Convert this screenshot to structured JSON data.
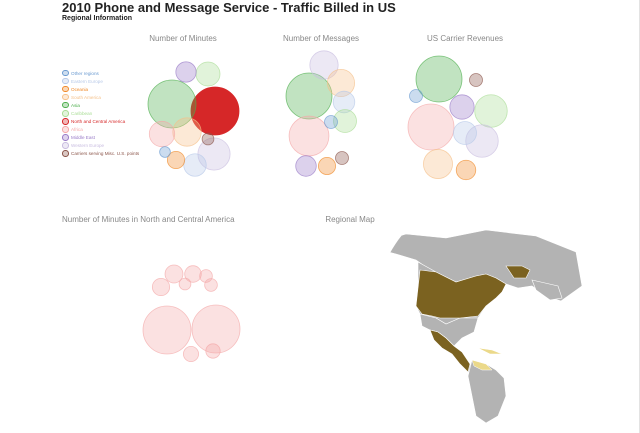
{
  "page": {
    "title": "2010 Phone and Message Service - Traffic Billed in US",
    "subtitle": "Regional Information"
  },
  "colors": {
    "Other regions": "#6a9ad0",
    "Eastern Europe": "#b7c9e8",
    "Oceania": "#f08a2a",
    "South America": "#f5c18a",
    "Asia": "#4cae4c",
    "Caribbean": "#a9dd95",
    "North and Central America": "#d62728",
    "Africa": "#f4a8a8",
    "Middle East": "#9a7cc8",
    "Western Europe": "#c9bde0",
    "Carriers serving Misc. U.S. points": "#8c564b",
    "map_highlight": "#7b6220",
    "map_light": "#ebd98a",
    "map_land": "#b3b3b3"
  },
  "legend": [
    "Other regions",
    "Eastern Europe",
    "Oceania",
    "South America",
    "Asia",
    "Caribbean",
    "North and Central America",
    "Africa",
    "Middle East",
    "Western Europe",
    "Carriers serving Misc. U.S. points"
  ],
  "chart_data": [
    {
      "type": "bubble",
      "title": "Number of Minutes",
      "values": [
        {
          "region": "North and Central America",
          "value": 100,
          "highlight": true
        },
        {
          "region": "Asia",
          "value": 100
        },
        {
          "region": "South America",
          "value": 35
        },
        {
          "region": "Western Europe",
          "value": 45
        },
        {
          "region": "Caribbean",
          "value": 25
        },
        {
          "region": "Middle East",
          "value": 18
        },
        {
          "region": "Africa",
          "value": 28
        },
        {
          "region": "Eastern Europe",
          "value": 22
        },
        {
          "region": "Oceania",
          "value": 13
        },
        {
          "region": "Carriers serving Misc. U.S. points",
          "value": 6
        },
        {
          "region": "Other regions",
          "value": 5
        }
      ]
    },
    {
      "type": "bubble",
      "title": "Number of Messages",
      "values": [
        {
          "region": "Asia",
          "value": 100
        },
        {
          "region": "Africa",
          "value": 75
        },
        {
          "region": "Western Europe",
          "value": 38
        },
        {
          "region": "South America",
          "value": 35
        },
        {
          "region": "Eastern Europe",
          "value": 22
        },
        {
          "region": "Caribbean",
          "value": 25
        },
        {
          "region": "Middle East",
          "value": 20
        },
        {
          "region": "Oceania",
          "value": 14
        },
        {
          "region": "Carriers serving Misc. U.S. points",
          "value": 8
        },
        {
          "region": "Other regions",
          "value": 8
        }
      ]
    },
    {
      "type": "bubble",
      "title": "US Carrier Revenues",
      "values": [
        {
          "region": "Asia",
          "value": 100
        },
        {
          "region": "Africa",
          "value": 100
        },
        {
          "region": "South America",
          "value": 40
        },
        {
          "region": "Caribbean",
          "value": 50
        },
        {
          "region": "Western Europe",
          "value": 50
        },
        {
          "region": "Middle East",
          "value": 28
        },
        {
          "region": "Eastern Europe",
          "value": 25
        },
        {
          "region": "Oceania",
          "value": 18
        },
        {
          "region": "Other regions",
          "value": 8
        },
        {
          "region": "Carriers serving Misc. U.S. points",
          "value": 8
        }
      ]
    },
    {
      "type": "bubble",
      "title": "Number of Minutes in North and Central America",
      "values": [
        {
          "value": 100
        },
        {
          "value": 100
        },
        {
          "value": 14
        },
        {
          "value": 12
        },
        {
          "value": 13
        },
        {
          "value": 7
        },
        {
          "value": 6
        },
        {
          "value": 7
        },
        {
          "value": 9
        },
        {
          "value": 10
        }
      ]
    }
  ],
  "map": {
    "title": "Regional Map"
  }
}
